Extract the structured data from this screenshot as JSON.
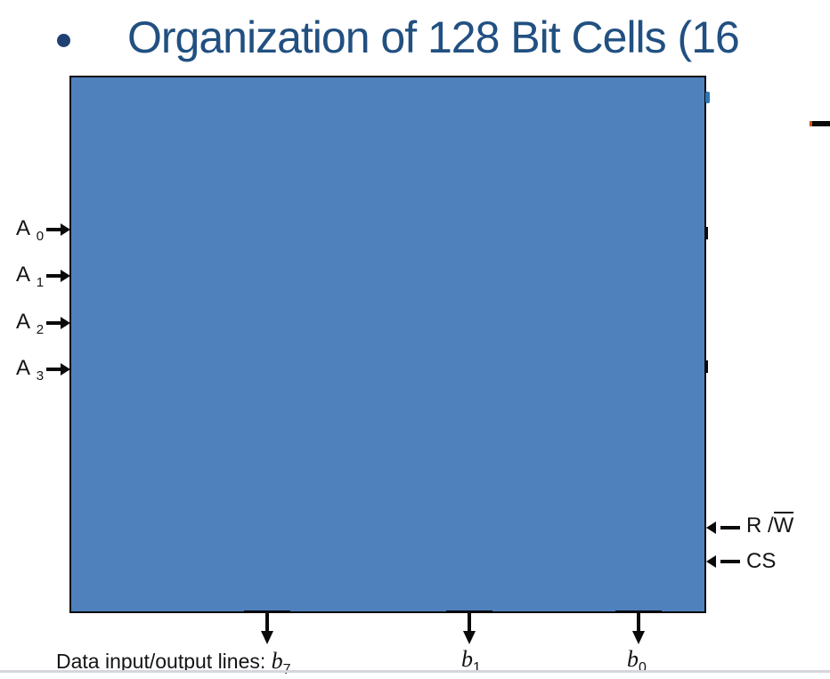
{
  "title": {
    "bullet_glyph": "•",
    "text": "Organization of 128 Bit Cells (16"
  },
  "diagram": {
    "box_fill_color": "#4f81bd",
    "title_color": "#215081",
    "address_lines": [
      {
        "base": "A",
        "sub": "0"
      },
      {
        "base": "A",
        "sub": "1"
      },
      {
        "base": "A",
        "sub": "2"
      },
      {
        "base": "A",
        "sub": "3"
      }
    ],
    "control_lines": [
      {
        "prefix": "R /",
        "overlined": "W"
      },
      {
        "prefix": "CS",
        "overlined": ""
      }
    ],
    "data_caption": "Data input/output lines:",
    "data_bits": [
      {
        "base": "b",
        "sub": "7"
      },
      {
        "base": "b",
        "sub": "1"
      },
      {
        "base": "b",
        "sub": "0"
      }
    ]
  }
}
